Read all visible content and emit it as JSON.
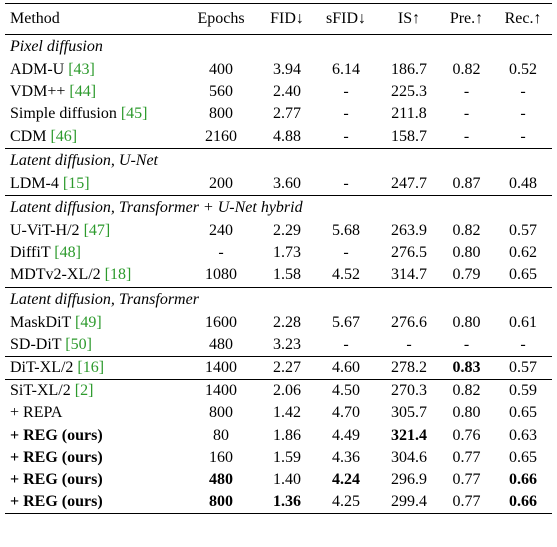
{
  "headers": [
    "Method",
    "Epochs",
    "FID↓",
    "sFID↓",
    "IS↑",
    "Pre.↑",
    "Rec.↑"
  ],
  "groups": [
    {
      "title": "Pixel diffusion",
      "rows": [
        {
          "name": "ADM-U",
          "ref": "[43]",
          "cells": [
            "400",
            "3.94",
            "6.14",
            "186.7",
            "0.82",
            "0.52"
          ]
        },
        {
          "name": "VDM++",
          "ref": "[44]",
          "cells": [
            "560",
            "2.40",
            "-",
            "225.3",
            "-",
            "-"
          ]
        },
        {
          "name": "Simple diffusion",
          "ref": "[45]",
          "cells": [
            "800",
            "2.77",
            "-",
            "211.8",
            "-",
            "-"
          ]
        },
        {
          "name": "CDM",
          "ref": "[46]",
          "cells": [
            "2160",
            "4.88",
            "-",
            "158.7",
            "-",
            "-"
          ]
        }
      ]
    },
    {
      "title": "Latent diffusion, U-Net",
      "rows": [
        {
          "name": "LDM-4",
          "ref": "[15]",
          "cells": [
            "200",
            "3.60",
            "-",
            "247.7",
            "0.87",
            "0.48"
          ]
        }
      ]
    },
    {
      "title": "Latent diffusion, Transformer + U-Net hybrid",
      "rows": [
        {
          "name": "U-ViT-H/2",
          "ref": "[47]",
          "cells": [
            "240",
            "2.29",
            "5.68",
            "263.9",
            "0.82",
            "0.57"
          ]
        },
        {
          "name": "DiffiT",
          "ref": "[48]",
          "cells": [
            "-",
            "1.73",
            "-",
            "276.5",
            "0.80",
            "0.62"
          ]
        },
        {
          "name": "MDTv2-XL/2",
          "ref": "[18]",
          "cells": [
            "1080",
            "1.58",
            "4.52",
            "314.7",
            "0.79",
            "0.65"
          ]
        }
      ]
    },
    {
      "title": "Latent diffusion, Transformer",
      "rows": [
        {
          "name": "MaskDiT",
          "ref": "[49]",
          "cells": [
            "1600",
            "2.28",
            "5.67",
            "276.6",
            "0.80",
            "0.61"
          ]
        },
        {
          "name": "SD-DiT",
          "ref": "[50]",
          "cells": [
            "480",
            "3.23",
            "-",
            "-",
            "-",
            "-"
          ]
        }
      ]
    },
    {
      "title": "",
      "rows": [
        {
          "name": "DiT-XL/2",
          "ref": "[16]",
          "cells": [
            "1400",
            "2.27",
            "4.60",
            "278.2",
            "0.83",
            "0.57"
          ],
          "bold": [
            false,
            false,
            false,
            false,
            true,
            false
          ]
        }
      ]
    },
    {
      "title": "",
      "rows": [
        {
          "name": "SiT-XL/2",
          "ref": "[2]",
          "cells": [
            "1400",
            "2.06",
            "4.50",
            "270.3",
            "0.82",
            "0.59"
          ]
        },
        {
          "name": "+ REPA",
          "ref": "",
          "cells": [
            "800",
            "1.42",
            "4.70",
            "305.7",
            "0.80",
            "0.65"
          ]
        },
        {
          "name": "+ REG (ours)",
          "ref": "",
          "name_bold": true,
          "cells": [
            "80",
            "1.86",
            "4.49",
            "321.4",
            "0.76",
            "0.63"
          ],
          "bold": [
            false,
            false,
            false,
            true,
            false,
            false
          ]
        },
        {
          "name": "+ REG (ours)",
          "ref": "",
          "name_bold": true,
          "cells": [
            "160",
            "1.59",
            "4.36",
            "304.6",
            "0.77",
            "0.65"
          ]
        },
        {
          "name": "+ REG (ours)",
          "ref": "",
          "name_bold": true,
          "cells": [
            "480",
            "1.40",
            "4.24",
            "296.9",
            "0.77",
            "0.66"
          ],
          "bold": [
            true,
            false,
            true,
            false,
            false,
            true
          ]
        },
        {
          "name": "+ REG (ours)",
          "ref": "",
          "name_bold": true,
          "cells": [
            "800",
            "1.36",
            "4.25",
            "299.4",
            "0.77",
            "0.66"
          ],
          "bold": [
            true,
            true,
            false,
            false,
            false,
            true
          ]
        }
      ]
    }
  ]
}
